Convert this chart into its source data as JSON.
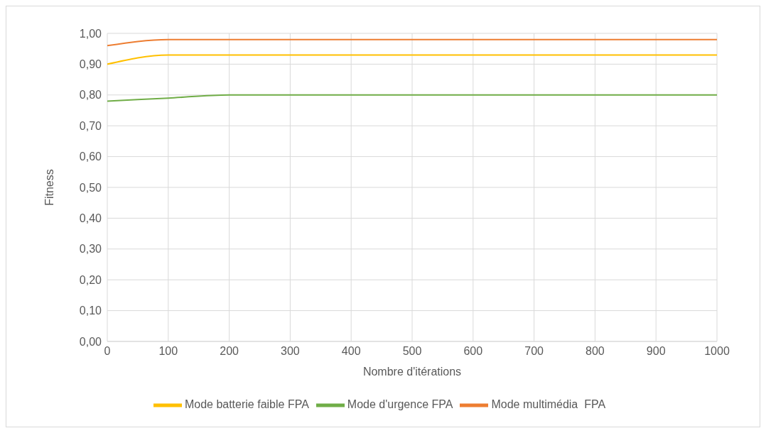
{
  "chart_data": {
    "type": "line",
    "xlabel": "Nombre d'itérations",
    "ylabel": "Fitness",
    "x": [
      0,
      100,
      200,
      300,
      400,
      500,
      600,
      700,
      800,
      900,
      1000
    ],
    "series": [
      {
        "name": "Mode multimédia  FPA",
        "color": "#ed7d31",
        "values": [
          0.96,
          0.98,
          0.98,
          0.98,
          0.98,
          0.98,
          0.98,
          0.98,
          0.98,
          0.98,
          0.98
        ]
      },
      {
        "name": "Mode batterie faible FPA",
        "color": "#ffc000",
        "values": [
          0.9,
          0.93,
          0.93,
          0.93,
          0.93,
          0.93,
          0.93,
          0.93,
          0.93,
          0.93,
          0.93
        ]
      },
      {
        "name": "Mode d'urgence FPA",
        "color": "#70ad47",
        "values": [
          0.78,
          0.79,
          0.8,
          0.8,
          0.8,
          0.8,
          0.8,
          0.8,
          0.8,
          0.8,
          0.8
        ]
      }
    ],
    "xlim": [
      0,
      1000
    ],
    "xticks": [
      0,
      100,
      200,
      300,
      400,
      500,
      600,
      700,
      800,
      900,
      1000
    ],
    "ylim": [
      0,
      1
    ],
    "yticks": [
      {
        "value": 0,
        "label": "0,00"
      },
      {
        "value": 0.1,
        "label": "0,10"
      },
      {
        "value": 0.2,
        "label": "0,20"
      },
      {
        "value": 0.3,
        "label": "0,30"
      },
      {
        "value": 0.4,
        "label": "0,40"
      },
      {
        "value": 0.5,
        "label": "0,50"
      },
      {
        "value": 0.6,
        "label": "0,60"
      },
      {
        "value": 0.7,
        "label": "0,70"
      },
      {
        "value": 0.8,
        "label": "0,80"
      },
      {
        "value": 0.9,
        "label": "0,90"
      },
      {
        "value": 1,
        "label": "1,00"
      }
    ],
    "grid": true,
    "legend": "bottom",
    "marker": "none",
    "line_style": "solid"
  }
}
